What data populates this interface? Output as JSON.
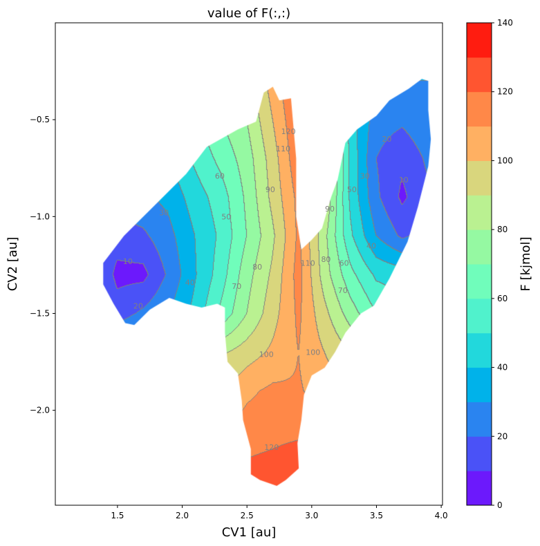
{
  "chart_data": {
    "type": "contour",
    "title": "value of F(:,:)",
    "xlabel": "CV1 [au]",
    "ylabel": "CV2 [au]",
    "xlim": [
      1.02,
      4.01
    ],
    "ylim": [
      -2.49,
      0.0
    ],
    "xticks": [
      1.5,
      2.0,
      2.5,
      3.0,
      3.5,
      4.0
    ],
    "xtick_labels": [
      "1.5",
      "2.0",
      "2.5",
      "3.0",
      "3.5",
      "4.0"
    ],
    "yticks": [
      -0.5,
      -1.0,
      -1.5,
      -2.0
    ],
    "ytick_labels": [
      "−0.5",
      "−1.0",
      "−1.5",
      "−2.0"
    ],
    "grid": false,
    "colorbar": {
      "label": "F [kjmol]",
      "range": [
        0,
        140
      ],
      "levels": [
        0,
        10,
        20,
        30,
        40,
        50,
        60,
        70,
        80,
        90,
        100,
        110,
        120,
        130,
        140
      ],
      "ticks": [
        0,
        20,
        40,
        60,
        80,
        100,
        120,
        140
      ],
      "tick_labels": [
        "0",
        "20",
        "40",
        "60",
        "80",
        "100",
        "120",
        "140"
      ],
      "colors": [
        "#6c19fc",
        "#4a52f7",
        "#2a84f0",
        "#00b2ea",
        "#22d8dc",
        "#50f2cc",
        "#70fdbb",
        "#95f9a2",
        "#baf191",
        "#d9d67d",
        "#ffb062",
        "#ff8848",
        "#ff5530",
        "#ff1c10"
      ]
    },
    "contour_line_color": "#808080",
    "grid_x": [
      1.3,
      1.5,
      1.7,
      1.9,
      2.1,
      2.3,
      2.5,
      2.7,
      2.9,
      3.1,
      3.3,
      3.5,
      3.7,
      3.9
    ],
    "grid_y": [
      -0.3,
      -0.5,
      -0.7,
      -0.9,
      -1.1,
      -1.3,
      -1.5,
      -1.7,
      -1.9,
      -2.1,
      -2.3,
      -2.5
    ],
    "F": [
      [
        55,
        55,
        55,
        58,
        60,
        65,
        85,
        105,
        122,
        80,
        50,
        35,
        30,
        30
      ],
      [
        50,
        50,
        50,
        50,
        58,
        70,
        80,
        100,
        120,
        90,
        45,
        25,
        22,
        28
      ],
      [
        40,
        38,
        35,
        40,
        52,
        63,
        75,
        95,
        118,
        95,
        48,
        20,
        12,
        22
      ],
      [
        30,
        25,
        28,
        33,
        45,
        55,
        72,
        93,
        113,
        90,
        48,
        22,
        8,
        18
      ],
      [
        20,
        15,
        18,
        27,
        40,
        52,
        70,
        88,
        112,
        83,
        52,
        30,
        18,
        25
      ],
      [
        25,
        7,
        7,
        22,
        39,
        55,
        76,
        92,
        114,
        85,
        63,
        48,
        45,
        50
      ],
      [
        30,
        15,
        22,
        30,
        43,
        62,
        80,
        96,
        112,
        93,
        75,
        60,
        55,
        60
      ],
      [
        40,
        35,
        40,
        50,
        70,
        88,
        95,
        102,
        110,
        100,
        90,
        80,
        80,
        80
      ],
      [
        90,
        90,
        92,
        95,
        97,
        98,
        108,
        112,
        111,
        106,
        100,
        100,
        100,
        100
      ],
      [
        110,
        110,
        110,
        110,
        111,
        112,
        114,
        116,
        117,
        115,
        112,
        110,
        110,
        110
      ],
      [
        118,
        118,
        118,
        118,
        119,
        120,
        122,
        124,
        128,
        125,
        120,
        118,
        118,
        118
      ],
      [
        125,
        125,
        125,
        125,
        125,
        125,
        126,
        132,
        130,
        125,
        125,
        125,
        125,
        125
      ]
    ],
    "sampled_region": [
      [
        1.39,
        -1.24
      ],
      [
        1.55,
        -1.1
      ],
      [
        1.82,
        -0.92
      ],
      [
        2.03,
        -0.78
      ],
      [
        2.19,
        -0.64
      ],
      [
        2.43,
        -0.55
      ],
      [
        2.57,
        -0.51
      ],
      [
        2.63,
        -0.36
      ],
      [
        2.7,
        -0.33
      ],
      [
        2.75,
        -0.4
      ],
      [
        2.84,
        -0.39
      ],
      [
        2.88,
        -0.7
      ],
      [
        2.88,
        -1.0
      ],
      [
        2.92,
        -1.17
      ],
      [
        3.0,
        -1.12
      ],
      [
        3.08,
        -1.06
      ],
      [
        3.15,
        -0.9
      ],
      [
        3.2,
        -0.81
      ],
      [
        3.26,
        -0.62
      ],
      [
        3.35,
        -0.55
      ],
      [
        3.5,
        -0.48
      ],
      [
        3.6,
        -0.4
      ],
      [
        3.75,
        -0.34
      ],
      [
        3.85,
        -0.29
      ],
      [
        3.9,
        -0.3
      ],
      [
        3.9,
        -0.45
      ],
      [
        3.92,
        -0.6
      ],
      [
        3.9,
        -0.74
      ],
      [
        3.82,
        -0.95
      ],
      [
        3.74,
        -1.13
      ],
      [
        3.6,
        -1.32
      ],
      [
        3.48,
        -1.46
      ],
      [
        3.38,
        -1.5
      ],
      [
        3.26,
        -1.6
      ],
      [
        3.18,
        -1.7
      ],
      [
        3.1,
        -1.78
      ],
      [
        3.0,
        -1.82
      ],
      [
        2.94,
        -1.92
      ],
      [
        2.92,
        -2.05
      ],
      [
        2.89,
        -2.17
      ],
      [
        2.9,
        -2.3
      ],
      [
        2.8,
        -2.36
      ],
      [
        2.73,
        -2.39
      ],
      [
        2.6,
        -2.36
      ],
      [
        2.53,
        -2.33
      ],
      [
        2.53,
        -2.2
      ],
      [
        2.47,
        -2.05
      ],
      [
        2.46,
        -1.95
      ],
      [
        2.43,
        -1.81
      ],
      [
        2.35,
        -1.75
      ],
      [
        2.33,
        -1.6
      ],
      [
        2.33,
        -1.47
      ],
      [
        2.27,
        -1.45
      ],
      [
        2.15,
        -1.47
      ],
      [
        2.03,
        -1.45
      ],
      [
        1.9,
        -1.42
      ],
      [
        1.75,
        -1.48
      ],
      [
        1.63,
        -1.56
      ],
      [
        1.56,
        -1.55
      ],
      [
        1.47,
        -1.45
      ],
      [
        1.39,
        -1.35
      ]
    ],
    "contour_labels": [
      {
        "text": "10",
        "x": 1.58,
        "y": -1.23
      },
      {
        "text": "20",
        "x": 1.66,
        "y": -1.46
      },
      {
        "text": "30",
        "x": 1.86,
        "y": -0.98
      },
      {
        "text": "40",
        "x": 2.06,
        "y": -1.34
      },
      {
        "text": "50",
        "x": 2.34,
        "y": -1.0
      },
      {
        "text": "60",
        "x": 2.29,
        "y": -0.79
      },
      {
        "text": "70",
        "x": 2.42,
        "y": -1.36
      },
      {
        "text": "80",
        "x": 2.58,
        "y": -1.26
      },
      {
        "text": "90",
        "x": 2.68,
        "y": -0.86
      },
      {
        "text": "100",
        "x": 2.65,
        "y": -1.71
      },
      {
        "text": "110",
        "x": 2.78,
        "y": -0.65
      },
      {
        "text": "120",
        "x": 2.82,
        "y": -0.56
      },
      {
        "text": "10",
        "x": 3.71,
        "y": -0.81
      },
      {
        "text": "20",
        "x": 3.58,
        "y": -0.6
      },
      {
        "text": "30",
        "x": 3.41,
        "y": -0.79
      },
      {
        "text": "40",
        "x": 3.46,
        "y": -1.15
      },
      {
        "text": "50",
        "x": 3.31,
        "y": -0.86
      },
      {
        "text": "60",
        "x": 3.25,
        "y": -1.24
      },
      {
        "text": "70",
        "x": 3.24,
        "y": -1.38
      },
      {
        "text": "80",
        "x": 3.11,
        "y": -1.22
      },
      {
        "text": "90",
        "x": 3.14,
        "y": -0.96
      },
      {
        "text": "100",
        "x": 3.01,
        "y": -1.7
      },
      {
        "text": "110",
        "x": 2.97,
        "y": -1.24
      },
      {
        "text": "120",
        "x": 2.69,
        "y": -2.19
      }
    ]
  }
}
